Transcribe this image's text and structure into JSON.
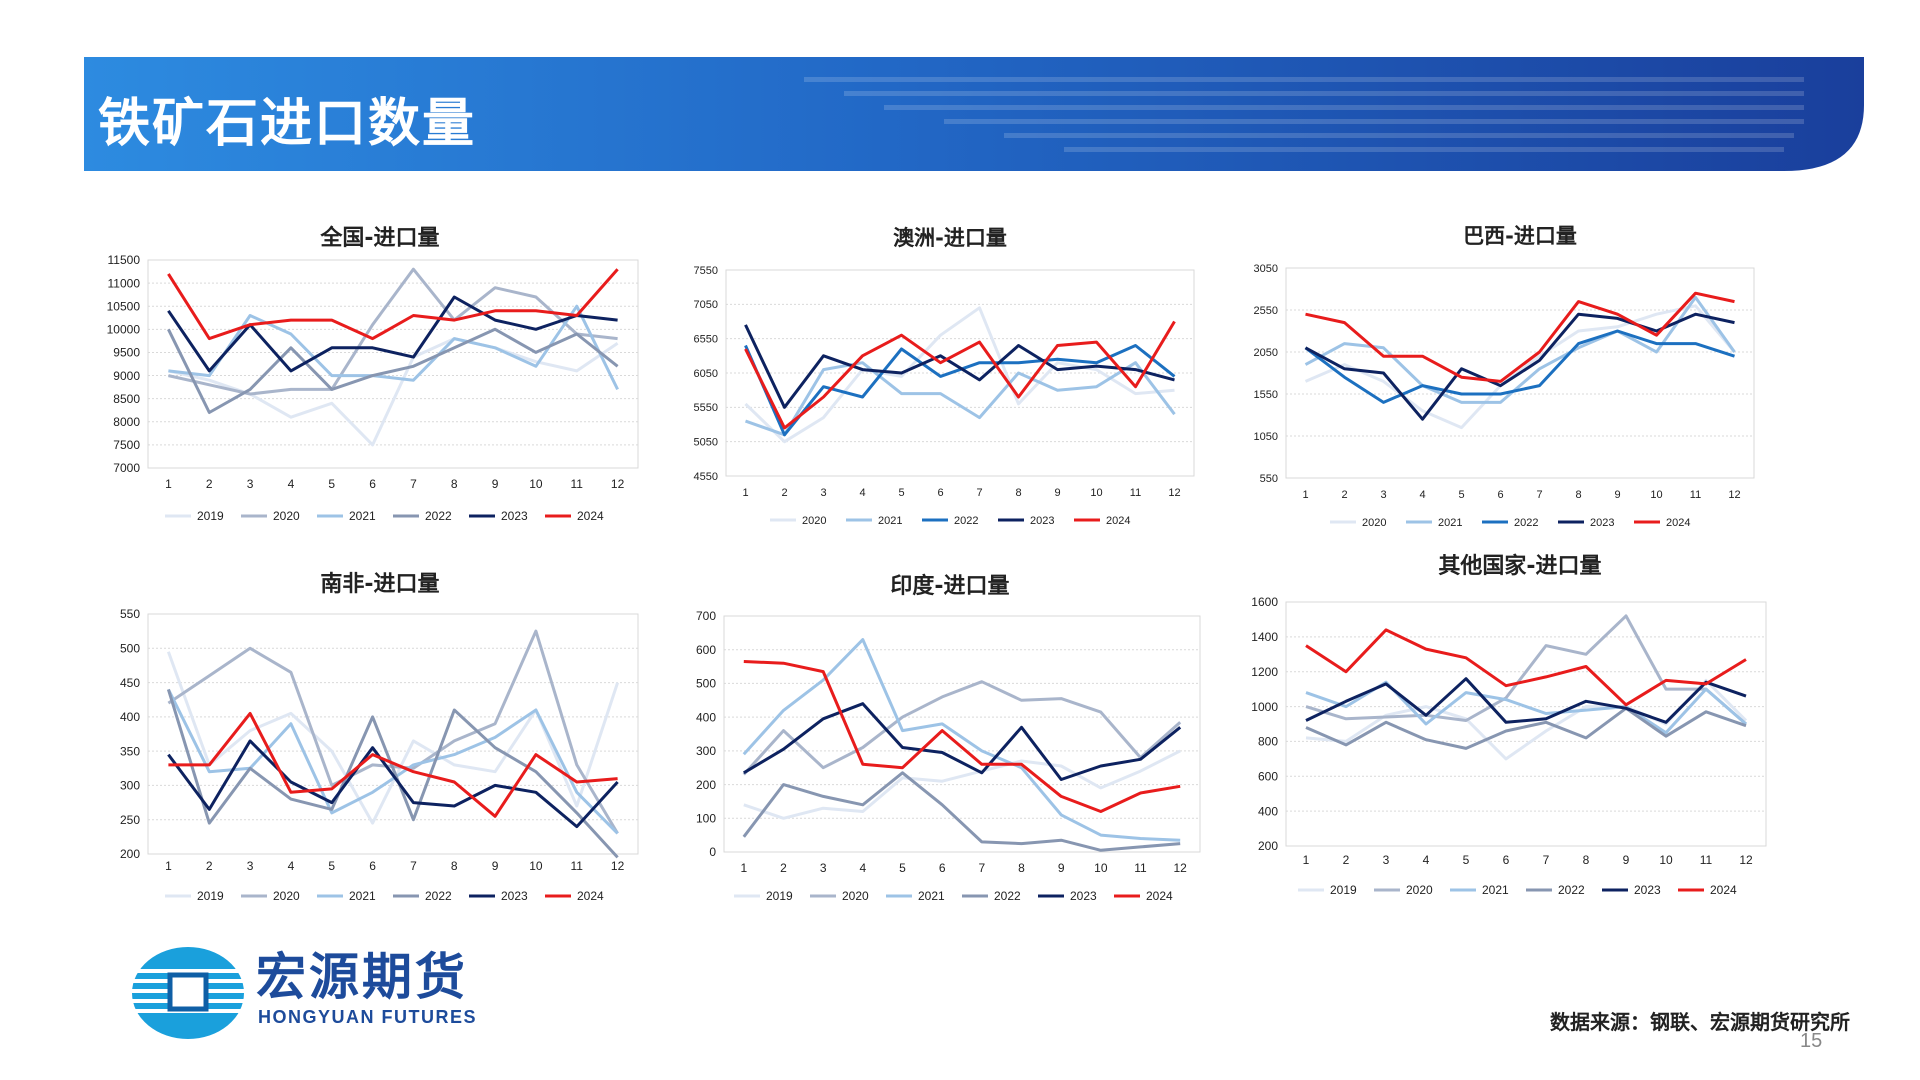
{
  "slide": {
    "title": "铁矿石进口数量",
    "source_note": "数据来源：钢联、宏源期货研究所",
    "page_number": "15"
  },
  "logo": {
    "cn": "宏源期货",
    "en": "HONGYUAN FUTURES"
  },
  "colors": {
    "banner_dark": "#1f4fa8",
    "banner_light": "#2f8fe0",
    "line_2019": "#dfe7f3",
    "line_2020": "#a9b5cb",
    "line_2021": "#9dc3e6",
    "line_2022": "#8796b1",
    "line_2023": "#0d2260",
    "line_2024": "#e81c1c",
    "line_2022_bright": "#1c70c0"
  },
  "chart_data": [
    {
      "type": "line",
      "title": "全国-进口量",
      "categories": [
        "1",
        "2",
        "3",
        "4",
        "5",
        "6",
        "7",
        "8",
        "9",
        "10",
        "11",
        "12"
      ],
      "ylim": [
        7000,
        11500
      ],
      "yticks": [
        "7000",
        "7500",
        "8000",
        "8500",
        "9000",
        "9500",
        "10000",
        "10500",
        "11000",
        "11500"
      ],
      "grid": true,
      "legend_position": "bottom",
      "series": [
        {
          "name": "2019",
          "color": "#dfe7f3",
          "values": [
            9100,
            8900,
            8600,
            8100,
            8400,
            7500,
            9400,
            9800,
            9600,
            9300,
            9100,
            9700
          ]
        },
        {
          "name": "2020",
          "color": "#a9b5cb",
          "values": [
            9000,
            8800,
            8600,
            8700,
            8700,
            10100,
            11300,
            10200,
            10900,
            10700,
            9900,
            9800
          ]
        },
        {
          "name": "2021",
          "color": "#9dc3e6",
          "values": [
            9100,
            9000,
            10300,
            9900,
            9000,
            9000,
            8900,
            9800,
            9600,
            9200,
            10500,
            8700
          ]
        },
        {
          "name": "2022",
          "color": "#8796b1",
          "values": [
            10000,
            8200,
            8700,
            9600,
            8700,
            9000,
            9200,
            9600,
            10000,
            9500,
            9900,
            9200
          ]
        },
        {
          "name": "2023",
          "color": "#0d2260",
          "values": [
            10400,
            9100,
            10100,
            9100,
            9600,
            9600,
            9400,
            10700,
            10200,
            10000,
            10300,
            10200
          ]
        },
        {
          "name": "2024",
          "color": "#e81c1c",
          "values": [
            11200,
            9800,
            10100,
            10200,
            10200,
            9800,
            10300,
            10200,
            10400,
            10400,
            10300,
            11300
          ]
        }
      ]
    },
    {
      "type": "line",
      "title": "澳洲-进口量",
      "categories": [
        "1",
        "2",
        "3",
        "4",
        "5",
        "6",
        "7",
        "8",
        "9",
        "10",
        "11",
        "12"
      ],
      "ylim": [
        4550,
        7550
      ],
      "yticks": [
        "4550",
        "5050",
        "5550",
        "6050",
        "6550",
        "7050",
        "7550"
      ],
      "grid": true,
      "legend_position": "bottom",
      "series": [
        {
          "name": "2020",
          "color": "#dfe7f3",
          "values": [
            5600,
            5050,
            5400,
            6100,
            6000,
            6600,
            7000,
            5600,
            6200,
            6100,
            5750,
            5800
          ]
        },
        {
          "name": "2021",
          "color": "#9dc3e6",
          "values": [
            5350,
            5150,
            6100,
            6200,
            5750,
            5750,
            5400,
            6050,
            5800,
            5850,
            6200,
            5450
          ]
        },
        {
          "name": "2022",
          "color": "#1c70c0",
          "values": [
            6450,
            5150,
            5850,
            5700,
            6400,
            6000,
            6200,
            6200,
            6250,
            6200,
            6450,
            6000
          ]
        },
        {
          "name": "2023",
          "color": "#0d2260",
          "values": [
            6750,
            5550,
            6300,
            6100,
            6050,
            6300,
            5950,
            6450,
            6100,
            6150,
            6100,
            5950
          ]
        },
        {
          "name": "2024",
          "color": "#e81c1c",
          "values": [
            6400,
            5250,
            5700,
            6300,
            6600,
            6200,
            6500,
            5700,
            6450,
            6500,
            5850,
            6800
          ]
        }
      ]
    },
    {
      "type": "line",
      "title": "巴西-进口量",
      "categories": [
        "1",
        "2",
        "3",
        "4",
        "5",
        "6",
        "7",
        "8",
        "9",
        "10",
        "11",
        "12"
      ],
      "ylim": [
        550,
        3050
      ],
      "yticks": [
        "550",
        "1050",
        "1550",
        "2050",
        "2550",
        "3050"
      ],
      "grid": true,
      "legend_position": "bottom",
      "series": [
        {
          "name": "2020",
          "color": "#dfe7f3",
          "values": [
            1700,
            1900,
            1700,
            1350,
            1150,
            1650,
            2000,
            2300,
            2350,
            2500,
            2600,
            2050
          ]
        },
        {
          "name": "2021",
          "color": "#9dc3e6",
          "values": [
            1900,
            2150,
            2100,
            1650,
            1450,
            1450,
            1850,
            2100,
            2300,
            2050,
            2700,
            2050
          ]
        },
        {
          "name": "2022",
          "color": "#1c70c0",
          "values": [
            2100,
            1750,
            1450,
            1650,
            1550,
            1550,
            1650,
            2150,
            2300,
            2150,
            2150,
            2000
          ]
        },
        {
          "name": "2023",
          "color": "#0d2260",
          "values": [
            2100,
            1850,
            1800,
            1250,
            1850,
            1650,
            1950,
            2500,
            2450,
            2300,
            2500,
            2400
          ]
        },
        {
          "name": "2024",
          "color": "#e81c1c",
          "values": [
            2500,
            2400,
            2000,
            2000,
            1750,
            1700,
            2050,
            2650,
            2500,
            2250,
            2750,
            2650
          ]
        }
      ]
    },
    {
      "type": "line",
      "title": "南非-进口量",
      "categories": [
        "1",
        "2",
        "3",
        "4",
        "5",
        "6",
        "7",
        "8",
        "9",
        "10",
        "11",
        "12"
      ],
      "ylim": [
        200,
        550
      ],
      "yticks": [
        "200",
        "250",
        "300",
        "350",
        "400",
        "450",
        "500",
        "550"
      ],
      "grid": true,
      "legend_position": "bottom",
      "series": [
        {
          "name": "2019",
          "color": "#dfe7f3",
          "values": [
            495,
            330,
            380,
            405,
            350,
            245,
            365,
            330,
            320,
            410,
            270,
            450
          ]
        },
        {
          "name": "2020",
          "color": "#a9b5cb",
          "values": [
            420,
            460,
            500,
            465,
            300,
            330,
            325,
            365,
            390,
            525,
            330,
            230
          ]
        },
        {
          "name": "2021",
          "color": "#9dc3e6",
          "values": [
            440,
            320,
            325,
            390,
            260,
            290,
            330,
            345,
            370,
            410,
            290,
            230
          ]
        },
        {
          "name": "2022",
          "color": "#8796b1",
          "values": [
            440,
            245,
            325,
            280,
            265,
            400,
            250,
            410,
            355,
            320,
            260,
            195
          ]
        },
        {
          "name": "2023",
          "color": "#0d2260",
          "values": [
            345,
            265,
            365,
            305,
            275,
            355,
            275,
            270,
            300,
            290,
            240,
            305
          ]
        },
        {
          "name": "2024",
          "color": "#e81c1c",
          "values": [
            330,
            330,
            405,
            290,
            295,
            345,
            320,
            305,
            255,
            345,
            305,
            310
          ]
        }
      ]
    },
    {
      "type": "line",
      "title": "印度-进口量",
      "categories": [
        "1",
        "2",
        "3",
        "4",
        "5",
        "6",
        "7",
        "8",
        "9",
        "10",
        "11",
        "12"
      ],
      "ylim": [
        0,
        700
      ],
      "yticks": [
        "0",
        "100",
        "200",
        "300",
        "400",
        "500",
        "600",
        "700"
      ],
      "grid": true,
      "legend_position": "bottom",
      "series": [
        {
          "name": "2019",
          "color": "#dfe7f3",
          "values": [
            140,
            100,
            130,
            120,
            220,
            210,
            240,
            270,
            255,
            190,
            240,
            300
          ]
        },
        {
          "name": "2020",
          "color": "#a9b5cb",
          "values": [
            230,
            360,
            250,
            310,
            400,
            460,
            505,
            450,
            455,
            415,
            280,
            385
          ]
        },
        {
          "name": "2021",
          "color": "#9dc3e6",
          "values": [
            290,
            420,
            510,
            630,
            360,
            380,
            300,
            250,
            110,
            50,
            40,
            35
          ]
        },
        {
          "name": "2022",
          "color": "#8796b1",
          "values": [
            45,
            200,
            165,
            140,
            235,
            140,
            30,
            25,
            35,
            5,
            15,
            25
          ]
        },
        {
          "name": "2023",
          "color": "#0d2260",
          "values": [
            235,
            305,
            395,
            440,
            310,
            295,
            235,
            370,
            215,
            255,
            275,
            370
          ]
        },
        {
          "name": "2024",
          "color": "#e81c1c",
          "values": [
            565,
            560,
            535,
            260,
            250,
            360,
            260,
            260,
            165,
            120,
            175,
            195
          ]
        }
      ]
    },
    {
      "type": "line",
      "title": "其他国家-进口量",
      "categories": [
        "1",
        "2",
        "3",
        "4",
        "5",
        "6",
        "7",
        "8",
        "9",
        "10",
        "11",
        "12"
      ],
      "ylim": [
        200,
        1600
      ],
      "yticks": [
        "200",
        "400",
        "600",
        "800",
        "1000",
        "1200",
        "1400",
        "1600"
      ],
      "grid": true,
      "legend_position": "bottom",
      "series": [
        {
          "name": "2019",
          "color": "#dfe7f3",
          "values": [
            820,
            800,
            950,
            1000,
            930,
            700,
            860,
            1000,
            1000,
            900,
            1150,
            920
          ]
        },
        {
          "name": "2020",
          "color": "#a9b5cb",
          "values": [
            1000,
            930,
            940,
            950,
            920,
            1050,
            1350,
            1300,
            1520,
            1100,
            1100,
            900
          ]
        },
        {
          "name": "2021",
          "color": "#9dc3e6",
          "values": [
            1080,
            1000,
            1140,
            900,
            1080,
            1040,
            960,
            980,
            1000,
            850,
            1100,
            900
          ]
        },
        {
          "name": "2022",
          "color": "#8796b1",
          "values": [
            880,
            780,
            910,
            810,
            760,
            860,
            910,
            820,
            990,
            830,
            970,
            890
          ]
        },
        {
          "name": "2023",
          "color": "#0d2260",
          "values": [
            920,
            1030,
            1130,
            950,
            1160,
            910,
            930,
            1030,
            990,
            910,
            1140,
            1060
          ]
        },
        {
          "name": "2024",
          "color": "#e81c1c",
          "values": [
            1350,
            1200,
            1440,
            1330,
            1280,
            1120,
            1170,
            1230,
            1010,
            1150,
            1130,
            1270
          ]
        }
      ]
    }
  ]
}
